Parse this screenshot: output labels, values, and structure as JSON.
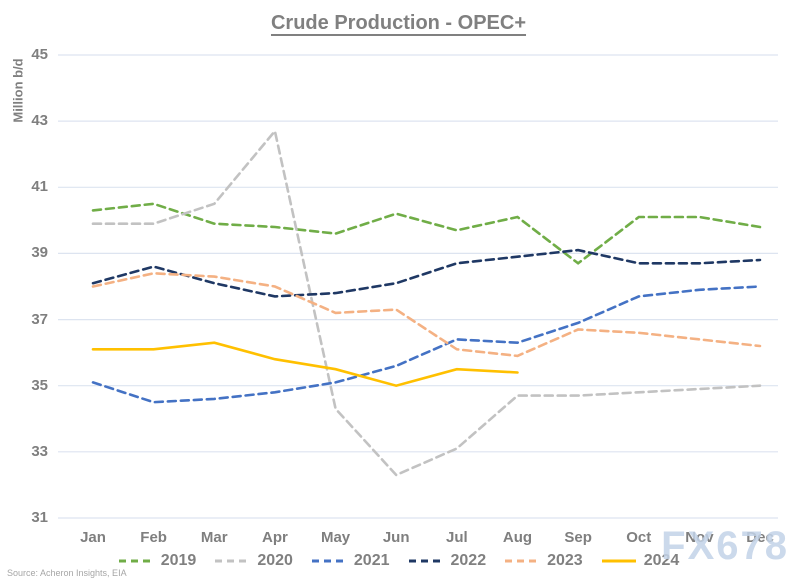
{
  "title": "Crude Production - OPEC+",
  "y_axis_label": "Million b/d",
  "source": "Source: Acheron Insights, EIA",
  "watermark": "FX678",
  "colors": {
    "grid": "#dde4f0",
    "axis_text": "#7f7f7f",
    "title_text": "#808080",
    "source_text": "#a6a6a6",
    "watermark": "#c3d3e8"
  },
  "chart_data": {
    "type": "line",
    "title": "Crude Production - OPEC+",
    "xlabel": "",
    "ylabel": "Million b/d",
    "ylim": [
      31,
      45
    ],
    "y_ticks": [
      45,
      43,
      41,
      39,
      37,
      35,
      33,
      31
    ],
    "grid": true,
    "legend_position": "bottom",
    "categories": [
      "Jan",
      "Feb",
      "Mar",
      "Apr",
      "May",
      "Jun",
      "Jul",
      "Aug",
      "Sep",
      "Oct",
      "Nov",
      "Dec"
    ],
    "series": [
      {
        "name": "2019",
        "color": "#70AD47",
        "dashed": true,
        "values": [
          40.3,
          40.5,
          39.9,
          39.8,
          39.6,
          40.2,
          39.7,
          40.1,
          38.7,
          40.1,
          40.1,
          39.8
        ]
      },
      {
        "name": "2020",
        "color": "#C2C2C2",
        "dashed": true,
        "values": [
          39.9,
          39.9,
          40.5,
          42.7,
          34.3,
          32.3,
          33.1,
          34.7,
          34.7,
          34.8,
          34.9,
          35.0
        ]
      },
      {
        "name": "2021",
        "color": "#4472C4",
        "dashed": true,
        "values": [
          35.1,
          34.5,
          34.6,
          34.8,
          35.1,
          35.6,
          36.4,
          36.3,
          36.9,
          37.7,
          37.9,
          38.0
        ]
      },
      {
        "name": "2022",
        "color": "#1F3864",
        "dashed": true,
        "values": [
          38.1,
          38.6,
          38.1,
          37.7,
          37.8,
          38.1,
          38.7,
          38.9,
          39.1,
          38.7,
          38.7,
          38.8
        ]
      },
      {
        "name": "2023",
        "color": "#F4B183",
        "dashed": true,
        "values": [
          38.0,
          38.4,
          38.3,
          38.0,
          37.2,
          37.3,
          36.1,
          35.9,
          36.7,
          36.6,
          36.4,
          36.2
        ]
      },
      {
        "name": "2024",
        "color": "#FFC000",
        "dashed": false,
        "values": [
          36.1,
          36.1,
          36.3,
          35.8,
          35.5,
          35.0,
          35.5,
          35.4,
          null,
          null,
          null,
          null
        ]
      }
    ]
  }
}
